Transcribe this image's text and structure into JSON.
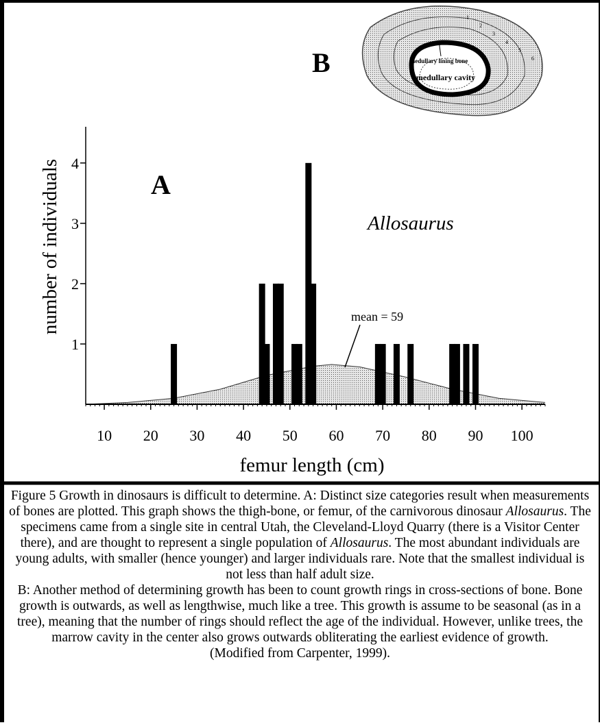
{
  "chart_data": {
    "type": "bar",
    "x": [
      25,
      44,
      45,
      47,
      48,
      51,
      52,
      54,
      55,
      69,
      70,
      73,
      76,
      85,
      86,
      88,
      90
    ],
    "values": [
      1,
      2,
      1,
      2,
      2,
      1,
      1,
      4,
      2,
      1,
      1,
      1,
      1,
      1,
      1,
      1,
      1
    ],
    "color": "#000000",
    "distribution": {
      "x": [
        6,
        15,
        25,
        35,
        45,
        55,
        59,
        65,
        75,
        85,
        95,
        105
      ],
      "values": [
        0,
        0.03,
        0.1,
        0.25,
        0.48,
        0.63,
        0.66,
        0.62,
        0.45,
        0.25,
        0.1,
        0.03
      ],
      "color": "#c8c8c8"
    },
    "xlim": [
      6,
      105
    ],
    "ylim": [
      0,
      4.6
    ],
    "xticks": [
      10,
      20,
      30,
      40,
      50,
      60,
      70,
      80,
      90,
      100
    ],
    "yticks": [
      1,
      2,
      3,
      4
    ],
    "x_label": "femur length (cm)",
    "y_label": "number of individuals",
    "panel_a": "A",
    "panel_b": "B",
    "taxon": "Allosaurus",
    "annotation": "mean = 59",
    "inset": {
      "lining": "medullary lining bone",
      "cavity": "medullary cavity",
      "rings": [
        "1",
        "2",
        "3",
        "4",
        "5",
        "6"
      ]
    }
  },
  "caption": {
    "p1": [
      "Figure 5    Growth in dinosaurs is difficult to determine. A: Distinct size categories result when measurements of  bones are plotted.  This graph shows the thigh-bone, or femur, of the carnivorous dinosaur ",
      "Allosaurus",
      ".  The specimens came from a single site in central Utah, the Cleveland-Lloyd Quarry (there is a Visitor Center there), and are thought to represent a single population of ",
      "Allosaurus",
      ".  The most abundant individuals are young adults, with smaller (hence younger) and larger individuals rare.  Note that the smallest individual is not less than half adult size."
    ],
    "p2": "B:  Another method of determining growth has been to count growth rings in cross-sections of bone.  Bone growth is outwards, as well as lengthwise, much like a tree. This growth is assume to be seasonal (as in a tree), meaning that the number of rings should reflect the age of the individual.  However, unlike trees, the marrow cavity in the center also grows outwards obliterating the earliest evidence of growth.",
    "source": "(Modified from Carpenter, 1999)."
  }
}
